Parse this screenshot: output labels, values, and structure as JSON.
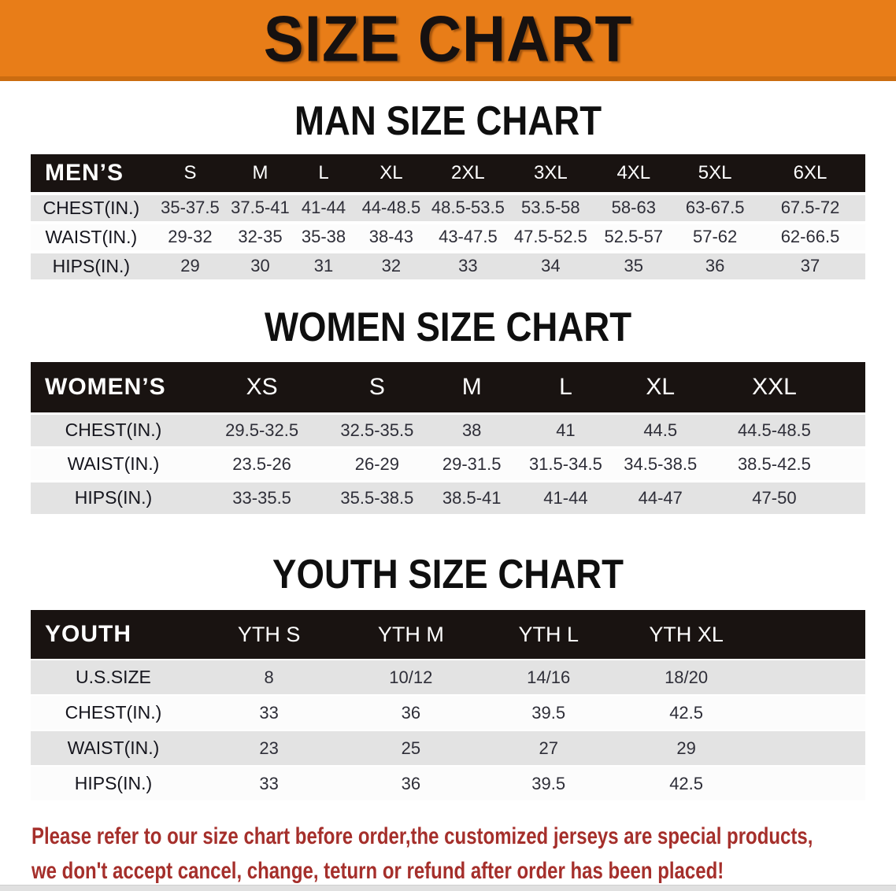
{
  "banner": {
    "title": "SIZE CHART"
  },
  "colors": {
    "banner_orange": "#e87d18",
    "banner_edge": "#cb6c10",
    "header_black": "#191311",
    "stripe_gray": "#e3e3e3",
    "stripe_white": "#fcfcfc",
    "disclaimer_red": "#a52f2b"
  },
  "sections": {
    "men": {
      "heading": "MAN SIZE CHART",
      "corner_label": "MEN’S",
      "sizes": [
        "S",
        "M",
        "L",
        "XL",
        "2XL",
        "3XL",
        "4XL",
        "5XL",
        "6XL"
      ],
      "rows": [
        {
          "label": "CHEST(IN.)",
          "values": [
            "35-37.5",
            "37.5-41",
            "41-44",
            "44-48.5",
            "48.5-53.5",
            "53.5-58",
            "58-63",
            "63-67.5",
            "67.5-72"
          ]
        },
        {
          "label": "WAIST(IN.)",
          "values": [
            "29-32",
            "32-35",
            "35-38",
            "38-43",
            "43-47.5",
            "47.5-52.5",
            "52.5-57",
            "57-62",
            "62-66.5"
          ]
        },
        {
          "label": "HIPS(IN.)",
          "values": [
            "29",
            "30",
            "31",
            "32",
            "33",
            "34",
            "35",
            "36",
            "37"
          ]
        }
      ]
    },
    "women": {
      "heading": "WOMEN SIZE CHART",
      "corner_label": "WOMEN’S",
      "sizes": [
        "XS",
        "S",
        "M",
        "L",
        "XL",
        "XXL"
      ],
      "rows": [
        {
          "label": "CHEST(IN.)",
          "values": [
            "29.5-32.5",
            "32.5-35.5",
            "38",
            "41",
            "44.5",
            "44.5-48.5"
          ]
        },
        {
          "label": "WAIST(IN.)",
          "values": [
            "23.5-26",
            "26-29",
            "29-31.5",
            "31.5-34.5",
            "34.5-38.5",
            "38.5-42.5"
          ]
        },
        {
          "label": "HIPS(IN.)",
          "values": [
            "33-35.5",
            "35.5-38.5",
            "38.5-41",
            "41-44",
            "44-47",
            "47-50"
          ]
        }
      ]
    },
    "youth": {
      "heading": "YOUTH SIZE CHART",
      "corner_label": "YOUTH",
      "sizes": [
        "YTH S",
        "YTH M",
        "YTH L",
        "YTH XL"
      ],
      "rows": [
        {
          "label": "U.S.SIZE",
          "values": [
            "8",
            "10/12",
            "14/16",
            "18/20"
          ]
        },
        {
          "label": "CHEST(IN.)",
          "values": [
            "33",
            "36",
            "39.5",
            "42.5"
          ]
        },
        {
          "label": "WAIST(IN.)",
          "values": [
            "23",
            "25",
            "27",
            "29"
          ]
        },
        {
          "label": "HIPS(IN.)",
          "values": [
            "33",
            "36",
            "39.5",
            "42.5"
          ]
        }
      ]
    }
  },
  "disclaimer": {
    "line1": "Please refer to our size chart before order,the customized jerseys are special products,",
    "line2": "we don't accept cancel, change, teturn or refund after order has been placed!"
  }
}
